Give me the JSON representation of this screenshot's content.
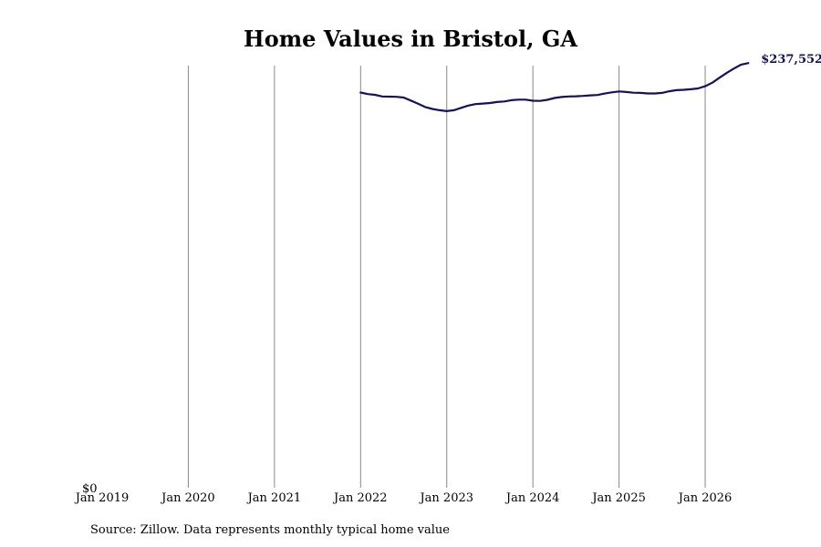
{
  "title": "Home Values in Bristol, GA",
  "source": "Source: Zillow. Data represents monthly typical home value",
  "colors": {
    "line": "#12125e",
    "grid": "#888888"
  },
  "chart_data": {
    "type": "line",
    "title": "Home Values in Bristol, GA",
    "xlabel": "",
    "ylabel": "",
    "grid": "vertical",
    "xlim": [
      "2019-01",
      "2026-09"
    ],
    "ylim": [
      0,
      255000
    ],
    "x_ticks": [
      "Jan 2019",
      "Jan 2020",
      "Jan 2021",
      "Jan 2022",
      "Jan 2023",
      "Jan 2024",
      "Jan 2025",
      "Jan 2026"
    ],
    "y_ticks": [
      "$0"
    ],
    "end_label": "$237,552",
    "series": [
      {
        "x": [
          "2022-01",
          "2022-02",
          "2022-03",
          "2022-04",
          "2022-05",
          "2022-06",
          "2022-07",
          "2022-08",
          "2022-09",
          "2022-10",
          "2022-11",
          "2022-12",
          "2023-01",
          "2023-02",
          "2023-03",
          "2023-04",
          "2023-05",
          "2023-06",
          "2023-07",
          "2023-08",
          "2023-09",
          "2023-10",
          "2023-11",
          "2023-12",
          "2024-01",
          "2024-02",
          "2024-03",
          "2024-04",
          "2024-05",
          "2024-06",
          "2024-07",
          "2024-08",
          "2024-09",
          "2024-10",
          "2024-11",
          "2024-12",
          "2025-01",
          "2025-02",
          "2025-03",
          "2025-04",
          "2025-05",
          "2025-06",
          "2025-07",
          "2025-08",
          "2025-09",
          "2025-10",
          "2025-11",
          "2025-12",
          "2026-01",
          "2026-02",
          "2026-03",
          "2026-04",
          "2026-05",
          "2026-06",
          "2026-07"
        ],
        "values": [
          221100,
          220200,
          219800,
          218900,
          218800,
          218700,
          218300,
          216600,
          214800,
          213000,
          211900,
          211200,
          210700,
          211200,
          212500,
          213800,
          214600,
          214900,
          215200,
          215800,
          216100,
          216800,
          217100,
          217100,
          216500,
          216400,
          217000,
          218000,
          218600,
          218900,
          219000,
          219200,
          219500,
          219700,
          220500,
          221200,
          221700,
          221400,
          221000,
          220900,
          220600,
          220600,
          220900,
          221800,
          222400,
          222600,
          222900,
          223400,
          224600,
          226600,
          229400,
          232100,
          234500,
          236700,
          237552
        ]
      }
    ]
  }
}
